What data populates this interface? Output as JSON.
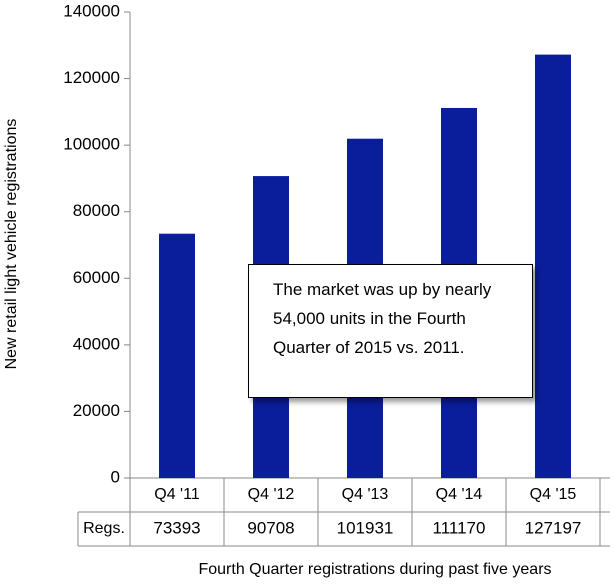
{
  "chart_data": {
    "type": "bar",
    "y_axis_label": "New retail light vehicle registrations",
    "x_axis_label": "Fourth Quarter registrations during past five years",
    "categories": [
      "Q4 '11",
      "Q4 '12",
      "Q4 '13",
      "Q4 '14",
      "Q4 '15"
    ],
    "series": [
      {
        "name": "Regs.",
        "color": "#0a1e9c",
        "values": [
          73393,
          90708,
          101931,
          111170,
          127197
        ]
      }
    ],
    "ylim": [
      0,
      140000
    ],
    "yticks": [
      0,
      20000,
      40000,
      60000,
      80000,
      100000,
      120000,
      140000
    ],
    "grid": false,
    "annotation": "The market was up by nearly 54,000 units in the Fourth Quarter of 2015 vs. 2011."
  }
}
